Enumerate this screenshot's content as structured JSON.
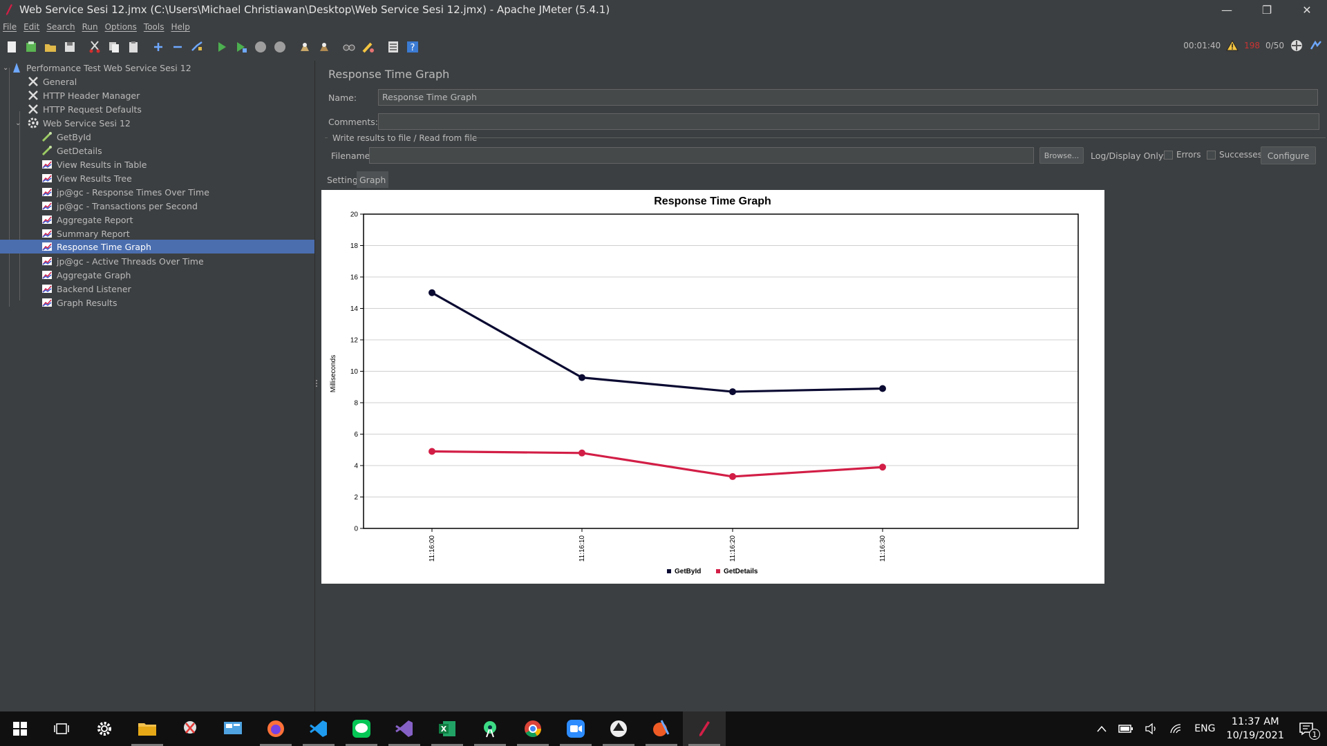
{
  "window": {
    "title": "Web Service Sesi 12.jmx (C:\\Users\\Michael Christiawan\\Desktop\\Web Service Sesi 12.jmx) - Apache JMeter (5.4.1)",
    "controls": [
      "minimize-icon",
      "restore-icon",
      "close-icon"
    ]
  },
  "menu": [
    "File",
    "Edit",
    "Search",
    "Run",
    "Options",
    "Tools",
    "Help"
  ],
  "toolbar": {
    "icons": [
      "new-icon",
      "templates-icon",
      "open-icon",
      "save-icon",
      "cut-icon",
      "copy-icon",
      "paste-icon",
      "expand-icon",
      "collapse-icon",
      "toggle-icon",
      "start-icon",
      "start-no-pause-icon",
      "stop-icon",
      "shutdown-icon",
      "clear-icon",
      "clear-all-icon",
      "search-icon",
      "reset-search-icon",
      "function-helper-icon",
      "help-icon"
    ],
    "elapsed": "00:01:40",
    "error_count": "198",
    "threads": "0/50"
  },
  "tree": {
    "items": [
      {
        "label": "Performance Test Web Service Sesi 12",
        "icon": "test-plan-icon",
        "level": 0
      },
      {
        "label": "General",
        "icon": "config-icon",
        "level": 1
      },
      {
        "label": "HTTP Header Manager",
        "icon": "config-icon",
        "level": 1
      },
      {
        "label": "HTTP Request Defaults",
        "icon": "config-icon",
        "level": 1
      },
      {
        "label": "Web Service Sesi 12",
        "icon": "thread-group-icon",
        "level": 1
      },
      {
        "label": "GetById",
        "icon": "sampler-icon",
        "level": 2
      },
      {
        "label": "GetDetails",
        "icon": "sampler-icon",
        "level": 2
      },
      {
        "label": "View Results in Table",
        "icon": "listener-icon",
        "level": 2
      },
      {
        "label": "View Results Tree",
        "icon": "listener-icon",
        "level": 2
      },
      {
        "label": "jp@gc - Response Times Over Time",
        "icon": "listener-icon",
        "level": 2
      },
      {
        "label": "jp@gc - Transactions per Second",
        "icon": "listener-icon",
        "level": 2
      },
      {
        "label": "Aggregate Report",
        "icon": "listener-icon",
        "level": 2
      },
      {
        "label": "Summary Report",
        "icon": "listener-icon",
        "level": 2
      },
      {
        "label": "Response Time Graph",
        "icon": "listener-icon",
        "level": 2,
        "selected": true
      },
      {
        "label": "jp@gc - Active Threads Over Time",
        "icon": "listener-icon",
        "level": 2
      },
      {
        "label": "Aggregate Graph",
        "icon": "listener-icon",
        "level": 2
      },
      {
        "label": "Backend Listener",
        "icon": "listener-icon",
        "level": 2
      },
      {
        "label": "Graph Results",
        "icon": "listener-icon",
        "level": 2
      }
    ]
  },
  "panel": {
    "title": "Response Time Graph",
    "name_label": "Name:",
    "name_value": "Response Time Graph",
    "comments_label": "Comments:",
    "comments_value": "",
    "file_group": "Write results to file / Read from file",
    "filename_label": "Filename",
    "filename_value": "",
    "browse": "Browse...",
    "log_display": "Log/Display Only:",
    "errors": "Errors",
    "successes": "Successes",
    "configure": "Configure",
    "tabs": [
      "Settings",
      "Graph"
    ],
    "active_tab": "Graph"
  },
  "chart_data": {
    "type": "line",
    "title": "Response Time Graph",
    "xlabel": "",
    "ylabel": "Milliseconds",
    "x": [
      "11:16:00",
      "11:16:10",
      "11:16:20",
      "11:16:30"
    ],
    "ylim": [
      0,
      20
    ],
    "yticks": [
      0,
      2,
      4,
      6,
      8,
      10,
      12,
      14,
      16,
      18,
      20
    ],
    "grid": true,
    "legend_position": "bottom",
    "series": [
      {
        "name": "GetById",
        "color": "#0a0a32",
        "values": [
          15.0,
          9.6,
          8.7,
          8.9
        ]
      },
      {
        "name": "GetDetails",
        "color": "#d21e46",
        "values": [
          4.9,
          4.8,
          3.3,
          3.9
        ]
      }
    ]
  },
  "taskbar": {
    "apps": [
      "windows-start-icon",
      "task-view-icon",
      "settings-icon",
      "file-explorer-icon",
      "snipping-tool-icon",
      "control-panel-icon",
      "firefox-icon",
      "vscode-icon",
      "line-icon",
      "visual-studio-icon",
      "excel-icon",
      "android-studio-icon",
      "chrome-icon",
      "zoom-icon",
      "inkscape-icon",
      "postman-icon",
      "jmeter-icon"
    ],
    "language": "ENG",
    "time": "11:37 AM",
    "date": "10/19/2021",
    "notification_count": "1"
  }
}
